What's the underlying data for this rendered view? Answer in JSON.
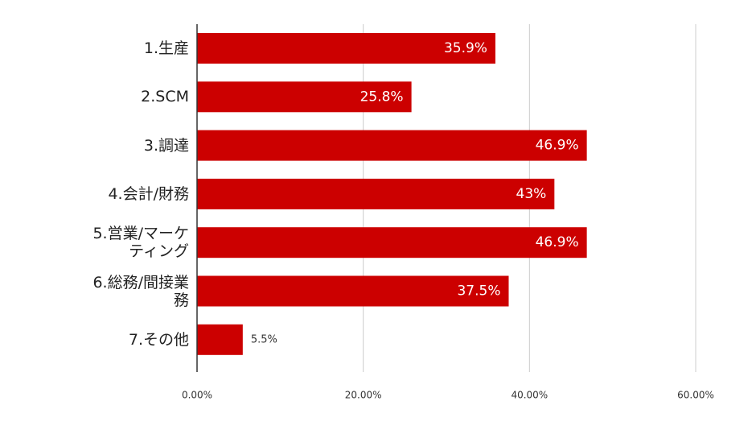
{
  "chart_data": {
    "type": "bar",
    "orientation": "horizontal",
    "categories": [
      "1.生産",
      "2.SCM",
      "3.調達",
      "4.会計/財務",
      "5.営業/マーケ\nティング",
      "6.総務/間接業\n務",
      "7.その他"
    ],
    "values": [
      35.9,
      25.8,
      46.9,
      43,
      46.9,
      37.5,
      5.5
    ],
    "value_labels": [
      "35.9%",
      "25.8%",
      "46.9%",
      "43%",
      "46.9%",
      "37.5%",
      "5.5%"
    ],
    "color": "#cc0000",
    "xlim": [
      0,
      60
    ],
    "xticks": [
      {
        "value": 0,
        "label": "0.00%"
      },
      {
        "value": 20,
        "label": "20.00%"
      },
      {
        "value": 40,
        "label": "40.00%"
      },
      {
        "value": 60,
        "label": "60.00%"
      }
    ],
    "grid": true
  }
}
